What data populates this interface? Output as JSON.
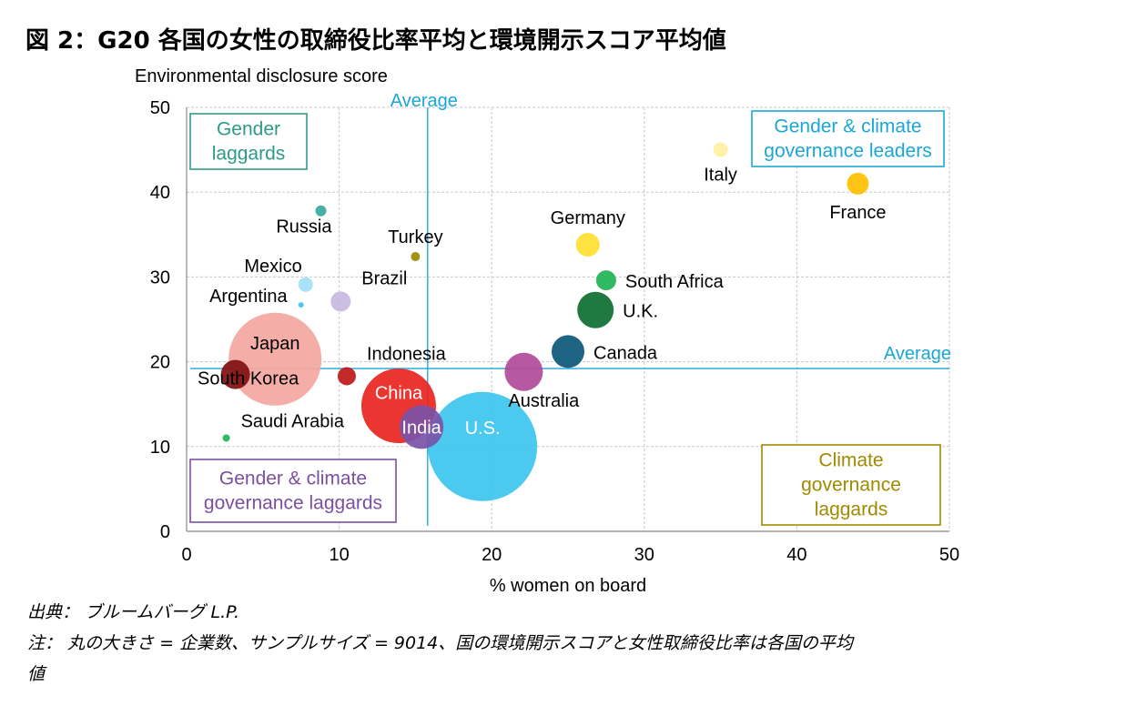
{
  "title": "図 2：G20 各国の女性の取締役比率平均と環境開示スコア平均値",
  "source": {
    "line1": "出典： ブルームバーグ L.P.",
    "line2": "注： 丸の大きさ = 企業数、サンプルサイズ = 9014、国の環境開示スコアと女性取締役比率は各国の平均",
    "line3": "値"
  },
  "chart_data": {
    "type": "bubble",
    "title": "",
    "xlabel": "% women on board",
    "ylabel": "Environmental disclosure score",
    "xlim": [
      0,
      50
    ],
    "ylim": [
      0,
      50
    ],
    "xticks": [
      "0",
      "10",
      "20",
      "30",
      "40",
      "50"
    ],
    "yticks": [
      "0",
      "10",
      "20",
      "30",
      "40",
      "50"
    ],
    "grid": true,
    "average_x": 15.8,
    "average_y": 19.2,
    "average_x_label": "Average",
    "average_y_label": "Average",
    "quadrants": [
      {
        "pos": "top-left",
        "lines": [
          "Gender",
          "laggards"
        ],
        "color": "#2e9a8a"
      },
      {
        "pos": "top-right",
        "lines": [
          "Gender & climate",
          "governance leaders"
        ],
        "color": "#1aa6d6"
      },
      {
        "pos": "bottom-left",
        "lines": [
          "Gender & climate",
          "governance laggards"
        ],
        "color": "#7b4fa0"
      },
      {
        "pos": "bottom-right",
        "lines": [
          "Climate",
          "governance",
          "laggards"
        ],
        "color": "#a08a00"
      }
    ],
    "points": [
      {
        "name": "Italy",
        "x": 35.0,
        "y": 45.0,
        "r": 8,
        "color": "#fff0a0",
        "label_pos": "below",
        "label_color": "#000000"
      },
      {
        "name": "France",
        "x": 44.0,
        "y": 41.0,
        "r": 12,
        "color": "#ffc000",
        "label_pos": "below",
        "label_color": "#000000"
      },
      {
        "name": "Russia",
        "x": 8.8,
        "y": 37.8,
        "r": 6,
        "color": "#3aa89a",
        "label_pos": "below-left",
        "label_color": "#000000"
      },
      {
        "name": "Germany",
        "x": 26.3,
        "y": 33.8,
        "r": 13,
        "color": "#ffe030",
        "label_pos": "above",
        "label_color": "#000000"
      },
      {
        "name": "Turkey",
        "x": 15.0,
        "y": 32.4,
        "r": 5,
        "color": "#9a8a00",
        "label_pos": "above",
        "label_color": "#000000"
      },
      {
        "name": "Mexico",
        "x": 7.8,
        "y": 29.1,
        "r": 8,
        "color": "#a0e0f8",
        "label_pos": "above-left",
        "label_color": "#000000"
      },
      {
        "name": "South Africa",
        "x": 27.5,
        "y": 29.6,
        "r": 11,
        "color": "#20b454",
        "label_pos": "right",
        "label_color": "#000000"
      },
      {
        "name": "Brazil",
        "x": 10.1,
        "y": 27.1,
        "r": 11,
        "color": "#c8b8e0",
        "label_pos": "above-right",
        "label_color": "#000000"
      },
      {
        "name": "Argentina",
        "x": 7.5,
        "y": 26.7,
        "r": 3,
        "color": "#40c0ef",
        "label_pos": "left",
        "label_color": "#000000"
      },
      {
        "name": "U.K.",
        "x": 26.8,
        "y": 26.1,
        "r": 20,
        "color": "#0e6e32",
        "label_pos": "right",
        "label_color": "#000000"
      },
      {
        "name": "Canada",
        "x": 25.0,
        "y": 21.2,
        "r": 18,
        "color": "#0a5878",
        "label_pos": "right",
        "label_color": "#000000"
      },
      {
        "name": "Japan",
        "x": 5.8,
        "y": 20.3,
        "r": 51,
        "color": "#f4a7a0",
        "label_pos": "center-up",
        "label_color": "#000000"
      },
      {
        "name": "Australia",
        "x": 22.1,
        "y": 18.8,
        "r": 21,
        "color": "#b04a9a",
        "label_pos": "below-right",
        "label_color": "#000000"
      },
      {
        "name": "South Korea",
        "x": 3.2,
        "y": 18.5,
        "r": 16,
        "color": "#801010",
        "label_pos": "below-center",
        "label_color": "#000000"
      },
      {
        "name": "Indonesia",
        "x": 10.5,
        "y": 18.3,
        "r": 10,
        "color": "#c01818",
        "label_pos": "above-right",
        "label_color": "#000000"
      },
      {
        "name": "China",
        "x": 13.9,
        "y": 14.8,
        "r": 41,
        "color": "#e8241e",
        "label_pos": "center-up",
        "label_color": "#ffffff"
      },
      {
        "name": "India",
        "x": 15.4,
        "y": 12.3,
        "r": 24,
        "color": "#7a52a8",
        "label_pos": "center",
        "label_color": "#ffffff"
      },
      {
        "name": "U.S.",
        "x": 19.4,
        "y": 10.0,
        "r": 60,
        "color": "#3cc4ee",
        "label_pos": "center-up",
        "label_color": "#ffffff"
      },
      {
        "name": "Saudi Arabia",
        "x": 2.6,
        "y": 11.0,
        "r": 4,
        "color": "#20b454",
        "label_pos": "above-right",
        "label_color": "#000000"
      }
    ]
  }
}
